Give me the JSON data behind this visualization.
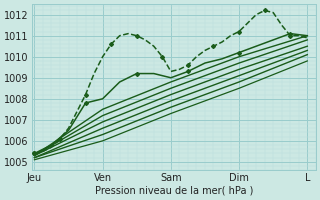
{
  "bg_color": "#cce8e3",
  "grid_major_color": "#99cccc",
  "grid_minor_color": "#bbdddd",
  "line_color": "#1a5c1a",
  "title": "Pression niveau de la mer( hPa )",
  "xtick_labels": [
    "Jeu",
    "Ven",
    "Sam",
    "Dim",
    "L"
  ],
  "xtick_positions": [
    0,
    24,
    48,
    72,
    96
  ],
  "ylim": [
    1004.6,
    1012.5
  ],
  "xlim": [
    -1,
    99
  ],
  "lines": [
    {
      "x": [
        0,
        3,
        6,
        9,
        12,
        15,
        18,
        21,
        24,
        27,
        30,
        33,
        36,
        39,
        42,
        45,
        48,
        51,
        54,
        57,
        60,
        63,
        66,
        69,
        72,
        75,
        78,
        81,
        84,
        87,
        90,
        93,
        96
      ],
      "y": [
        1005.4,
        1005.5,
        1005.7,
        1006.1,
        1006.6,
        1007.4,
        1008.2,
        1009.2,
        1010.0,
        1010.6,
        1011.0,
        1011.1,
        1011.0,
        1010.8,
        1010.5,
        1010.0,
        1009.3,
        1009.4,
        1009.6,
        1010.0,
        1010.3,
        1010.5,
        1010.7,
        1011.0,
        1011.2,
        1011.6,
        1012.0,
        1012.2,
        1012.1,
        1011.5,
        1011.0,
        1011.0,
        1010.9
      ],
      "style": "--",
      "marker": "D",
      "markersize": 2.0,
      "lw": 1.1
    },
    {
      "x": [
        0,
        6,
        12,
        18,
        24,
        30,
        36,
        42,
        48,
        54,
        60,
        66,
        72,
        78,
        84,
        90,
        96
      ],
      "y": [
        1005.4,
        1005.8,
        1006.5,
        1007.8,
        1008.0,
        1008.8,
        1009.2,
        1009.2,
        1009.0,
        1009.3,
        1009.7,
        1009.9,
        1010.2,
        1010.5,
        1010.8,
        1011.1,
        1011.0
      ],
      "style": "-",
      "marker": "D",
      "markersize": 2.0,
      "lw": 1.1
    },
    {
      "x": [
        0,
        24,
        48,
        72,
        96
      ],
      "y": [
        1005.3,
        1007.5,
        1008.8,
        1010.0,
        1011.0
      ],
      "style": "-",
      "marker": null,
      "markersize": 0,
      "lw": 1.0
    },
    {
      "x": [
        0,
        24,
        48,
        72,
        96
      ],
      "y": [
        1005.3,
        1007.2,
        1008.5,
        1009.7,
        1010.8
      ],
      "style": "-",
      "marker": null,
      "markersize": 0,
      "lw": 1.0
    },
    {
      "x": [
        0,
        24,
        48,
        72,
        96
      ],
      "y": [
        1005.3,
        1006.9,
        1008.2,
        1009.4,
        1010.5
      ],
      "style": "-",
      "marker": null,
      "markersize": 0,
      "lw": 1.0
    },
    {
      "x": [
        0,
        24,
        48,
        72,
        96
      ],
      "y": [
        1005.2,
        1006.6,
        1007.9,
        1009.1,
        1010.3
      ],
      "style": "-",
      "marker": null,
      "markersize": 0,
      "lw": 1.0
    },
    {
      "x": [
        0,
        24,
        48,
        72,
        96
      ],
      "y": [
        1005.2,
        1006.3,
        1007.6,
        1008.8,
        1010.1
      ],
      "style": "-",
      "marker": null,
      "markersize": 0,
      "lw": 1.0
    },
    {
      "x": [
        0,
        24,
        48,
        72,
        96
      ],
      "y": [
        1005.1,
        1006.0,
        1007.3,
        1008.5,
        1009.8
      ],
      "style": "-",
      "marker": null,
      "markersize": 0,
      "lw": 0.9
    }
  ]
}
